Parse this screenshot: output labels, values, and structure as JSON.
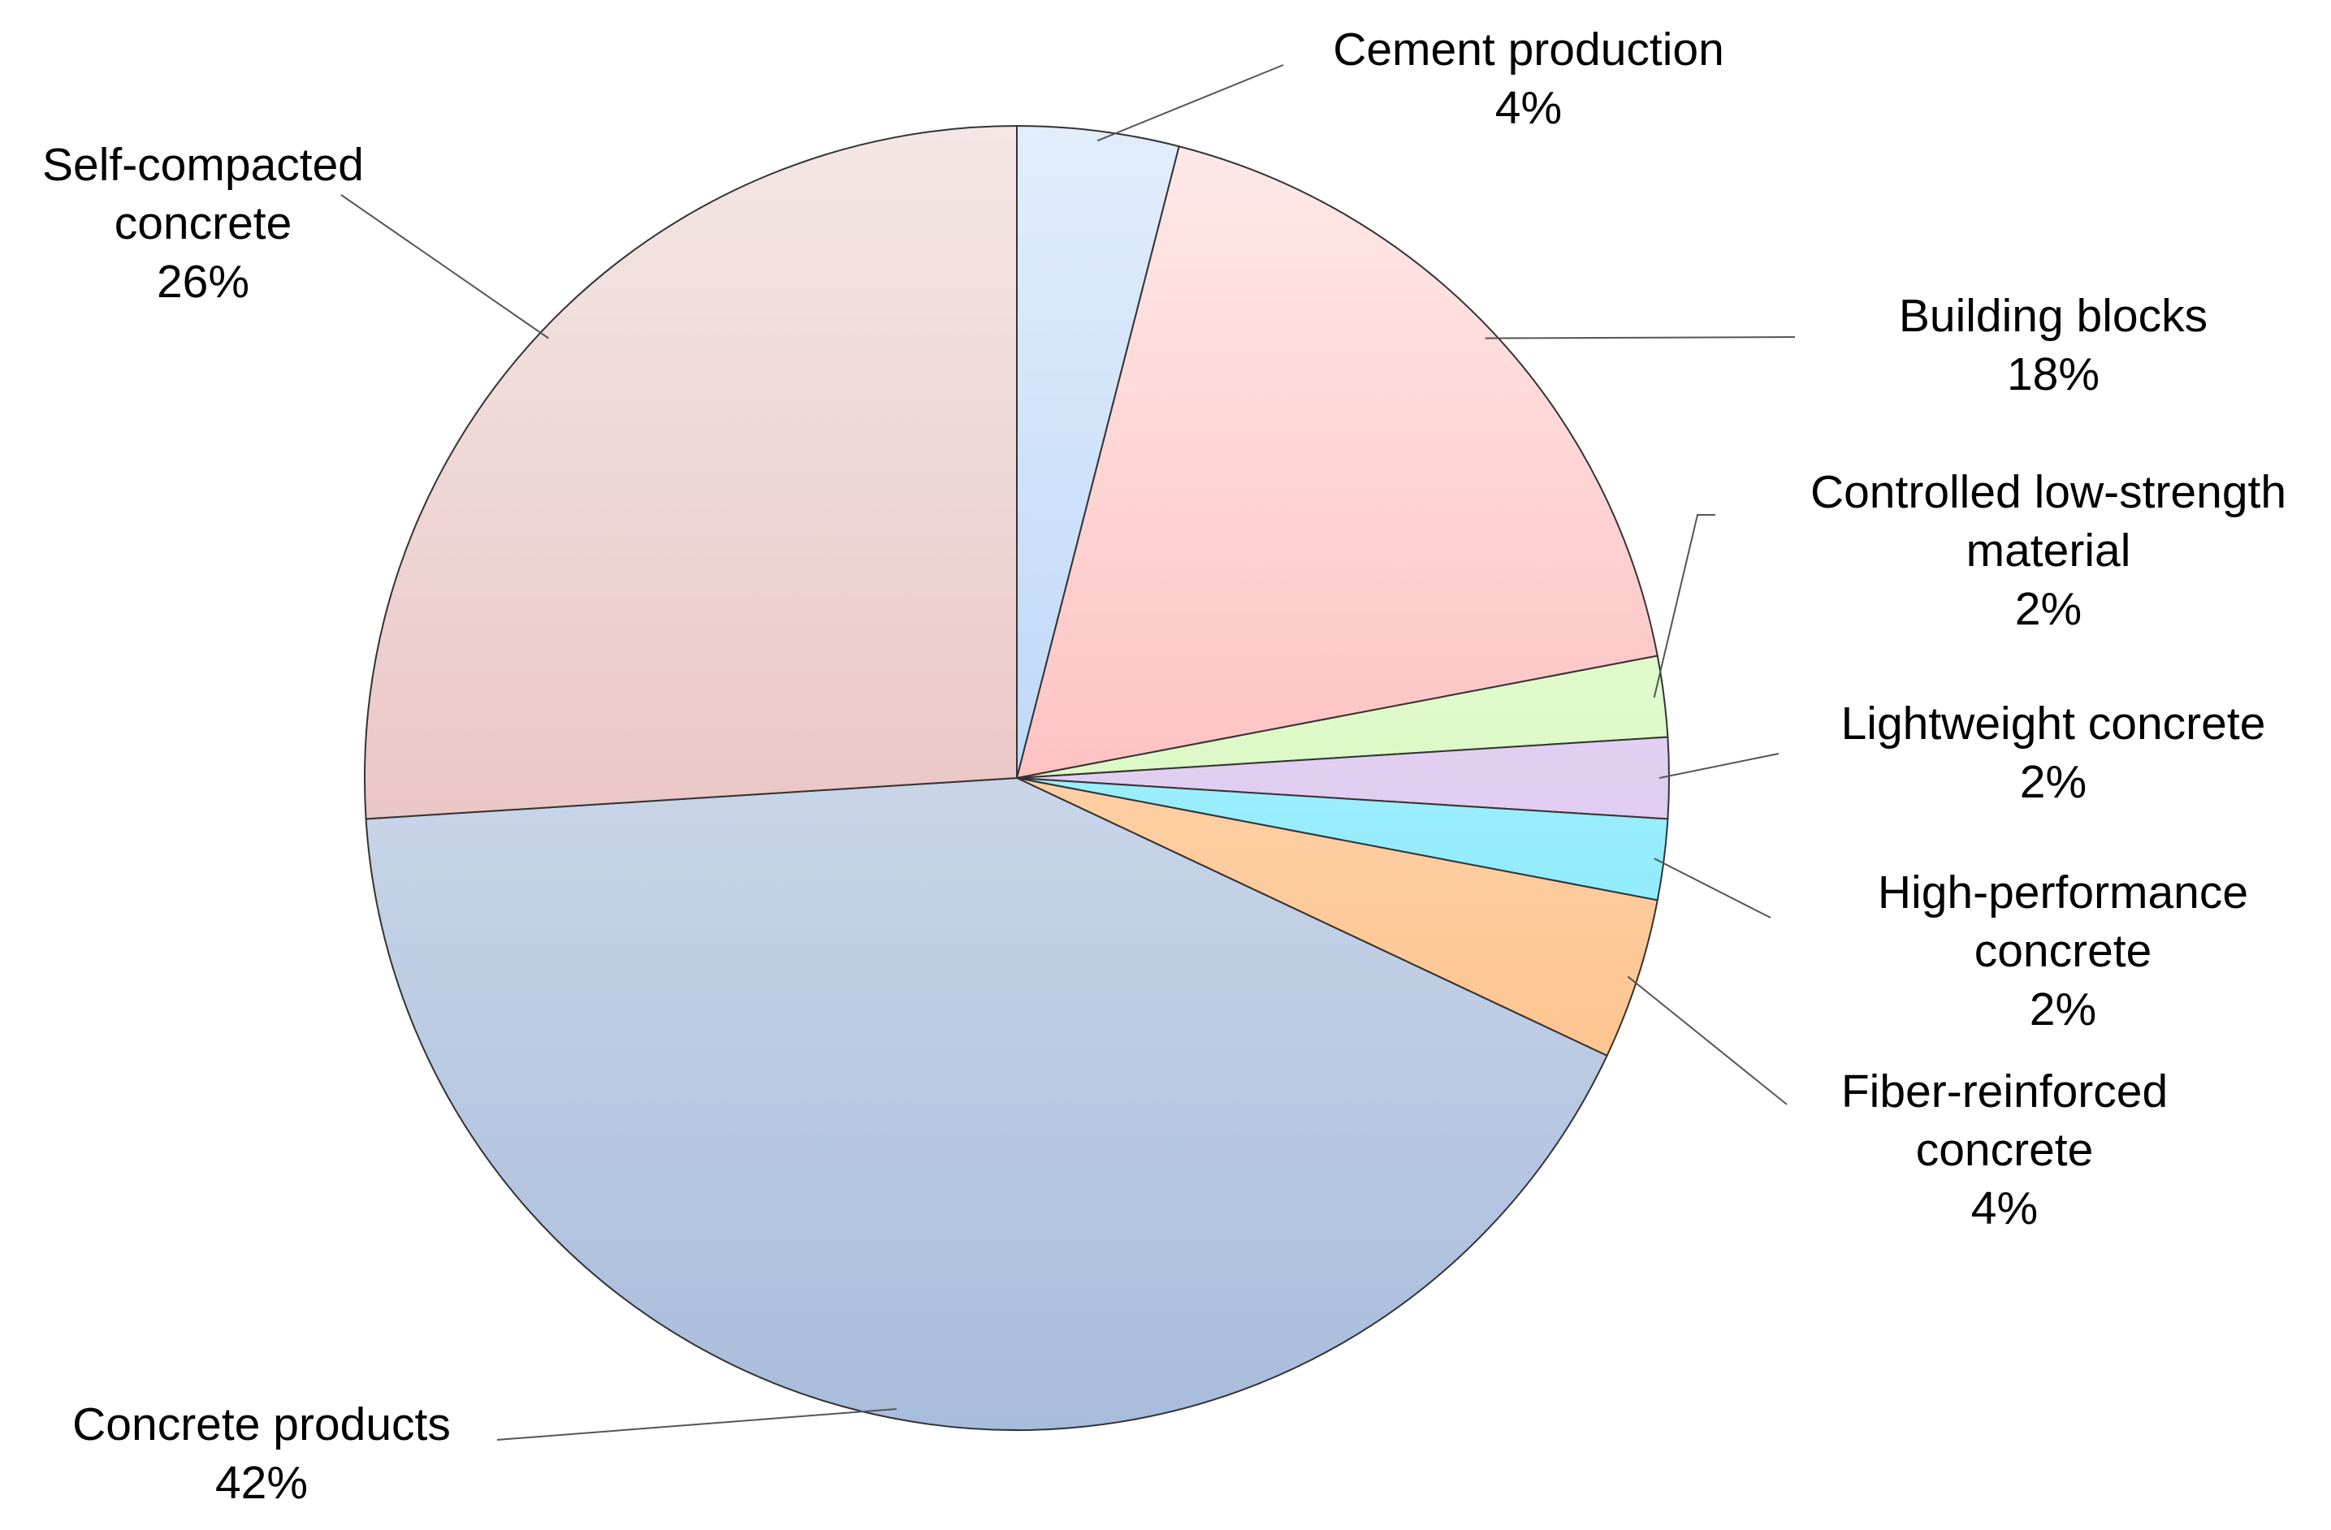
{
  "chart_data": {
    "type": "pie",
    "start_angle_deg": 0,
    "direction": "clockwise",
    "slices": [
      {
        "label_lines": [
          "Cement production"
        ],
        "pct_label": "4%",
        "value": 4,
        "color_top": "#e1edfb",
        "color_bottom": "#9fc3f6"
      },
      {
        "label_lines": [
          "Building blocks"
        ],
        "pct_label": "18%",
        "value": 18,
        "color_top": "#ffe9e9",
        "color_bottom": "#fd9d9b"
      },
      {
        "label_lines": [
          "Controlled low-strength",
          "material"
        ],
        "pct_label": "2%",
        "value": 2,
        "color_top": "#effbe6",
        "color_bottom": "#c9f6a6"
      },
      {
        "label_lines": [
          "Lightweight concrete"
        ],
        "pct_label": "2%",
        "value": 2,
        "color_top": "#f2eaf8",
        "color_bottom": "#cfb2ea"
      },
      {
        "label_lines": [
          "High-performance",
          "concrete"
        ],
        "pct_label": "2%",
        "value": 2,
        "color_top": "#d9f8fd",
        "color_bottom": "#5fe3fb"
      },
      {
        "label_lines": [
          "Fiber-reinforced",
          "concrete"
        ],
        "pct_label": "4%",
        "value": 4,
        "color_top": "#ffe6d0",
        "color_bottom": "#fdb878"
      },
      {
        "label_lines": [
          "Concrete products"
        ],
        "pct_label": "42%",
        "value": 42,
        "color_top": "#e9eef6",
        "color_bottom": "#a8bcdb"
      },
      {
        "label_lines": [
          "Self-compacted",
          "concrete"
        ],
        "pct_label": "26%",
        "value": 26,
        "color_top": "#f4e6e6",
        "color_bottom": "#e2abaa"
      }
    ]
  }
}
